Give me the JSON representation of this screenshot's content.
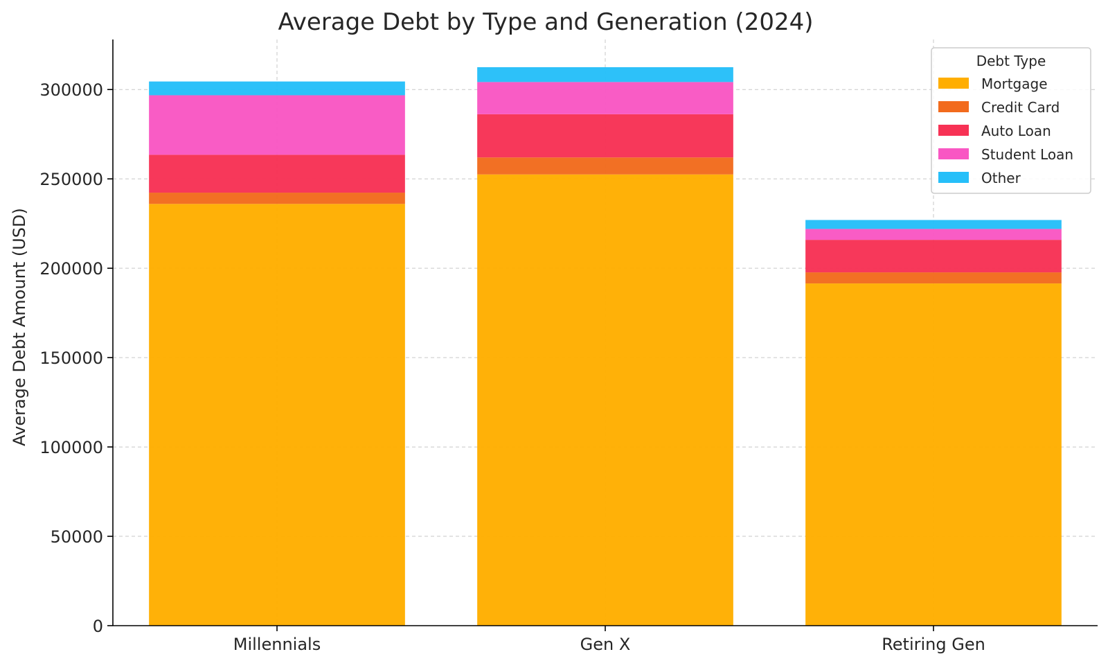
{
  "chart_data": {
    "type": "bar",
    "stacked": true,
    "title": "Average Debt by Type and Generation (2024)",
    "xlabel": "",
    "ylabel": "Average Debt Amount (USD)",
    "ylim": [
      0,
      328000
    ],
    "yticks": [
      0,
      50000,
      100000,
      150000,
      200000,
      250000,
      300000
    ],
    "categories": [
      "Millennials",
      "Gen X",
      "Retiring Gen"
    ],
    "grid": true,
    "legend": {
      "title": "Debt Type",
      "placement": "top-right"
    },
    "series": [
      {
        "name": "Mortgage",
        "color": "#FFAE00",
        "values": [
          236000,
          252500,
          191500
        ]
      },
      {
        "name": "Credit Card",
        "color": "#F26B1D",
        "values": [
          6300,
          9500,
          6200
        ]
      },
      {
        "name": "Auto Loan",
        "color": "#F73255",
        "values": [
          21200,
          24200,
          18200
        ]
      },
      {
        "name": "Student Loan",
        "color": "#F957C3",
        "values": [
          33300,
          18000,
          6100
        ]
      },
      {
        "name": "Other",
        "color": "#26BFF9",
        "values": [
          7700,
          8300,
          5000
        ]
      }
    ]
  }
}
